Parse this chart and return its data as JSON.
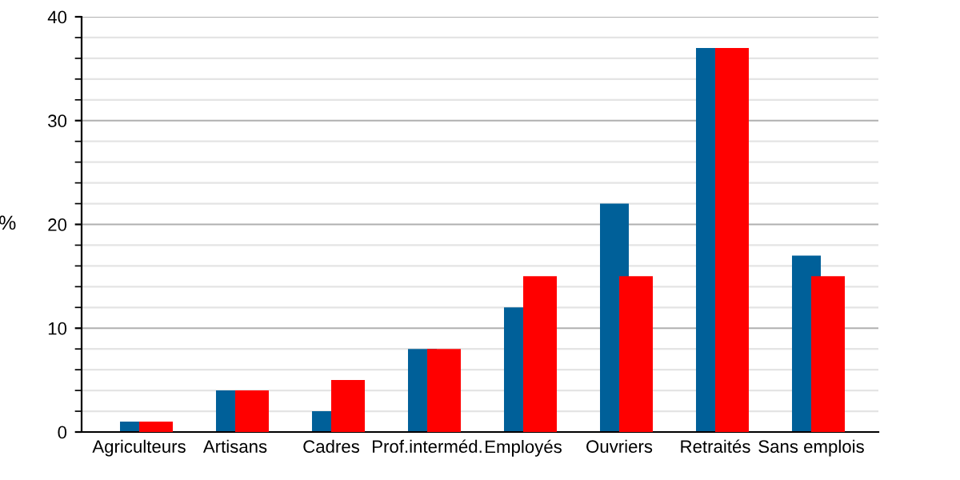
{
  "chart_data": {
    "type": "bar",
    "ylabel": "%",
    "categories": [
      "Agriculteurs",
      "Artisans",
      "Cadres",
      "Prof.interméd.",
      "Employés",
      "Ouvriers",
      "Retraités",
      "Sans emplois"
    ],
    "series": [
      {
        "color": "#006099",
        "values": [
          1,
          4,
          2,
          8,
          12,
          22,
          37,
          17
        ]
      },
      {
        "color": "#ff0000",
        "values": [
          1,
          4,
          5,
          8,
          15,
          15,
          37,
          15
        ]
      }
    ],
    "ylim": [
      0,
      40
    ],
    "yticks": [
      0,
      10,
      20,
      30,
      40
    ],
    "grid": "y"
  }
}
